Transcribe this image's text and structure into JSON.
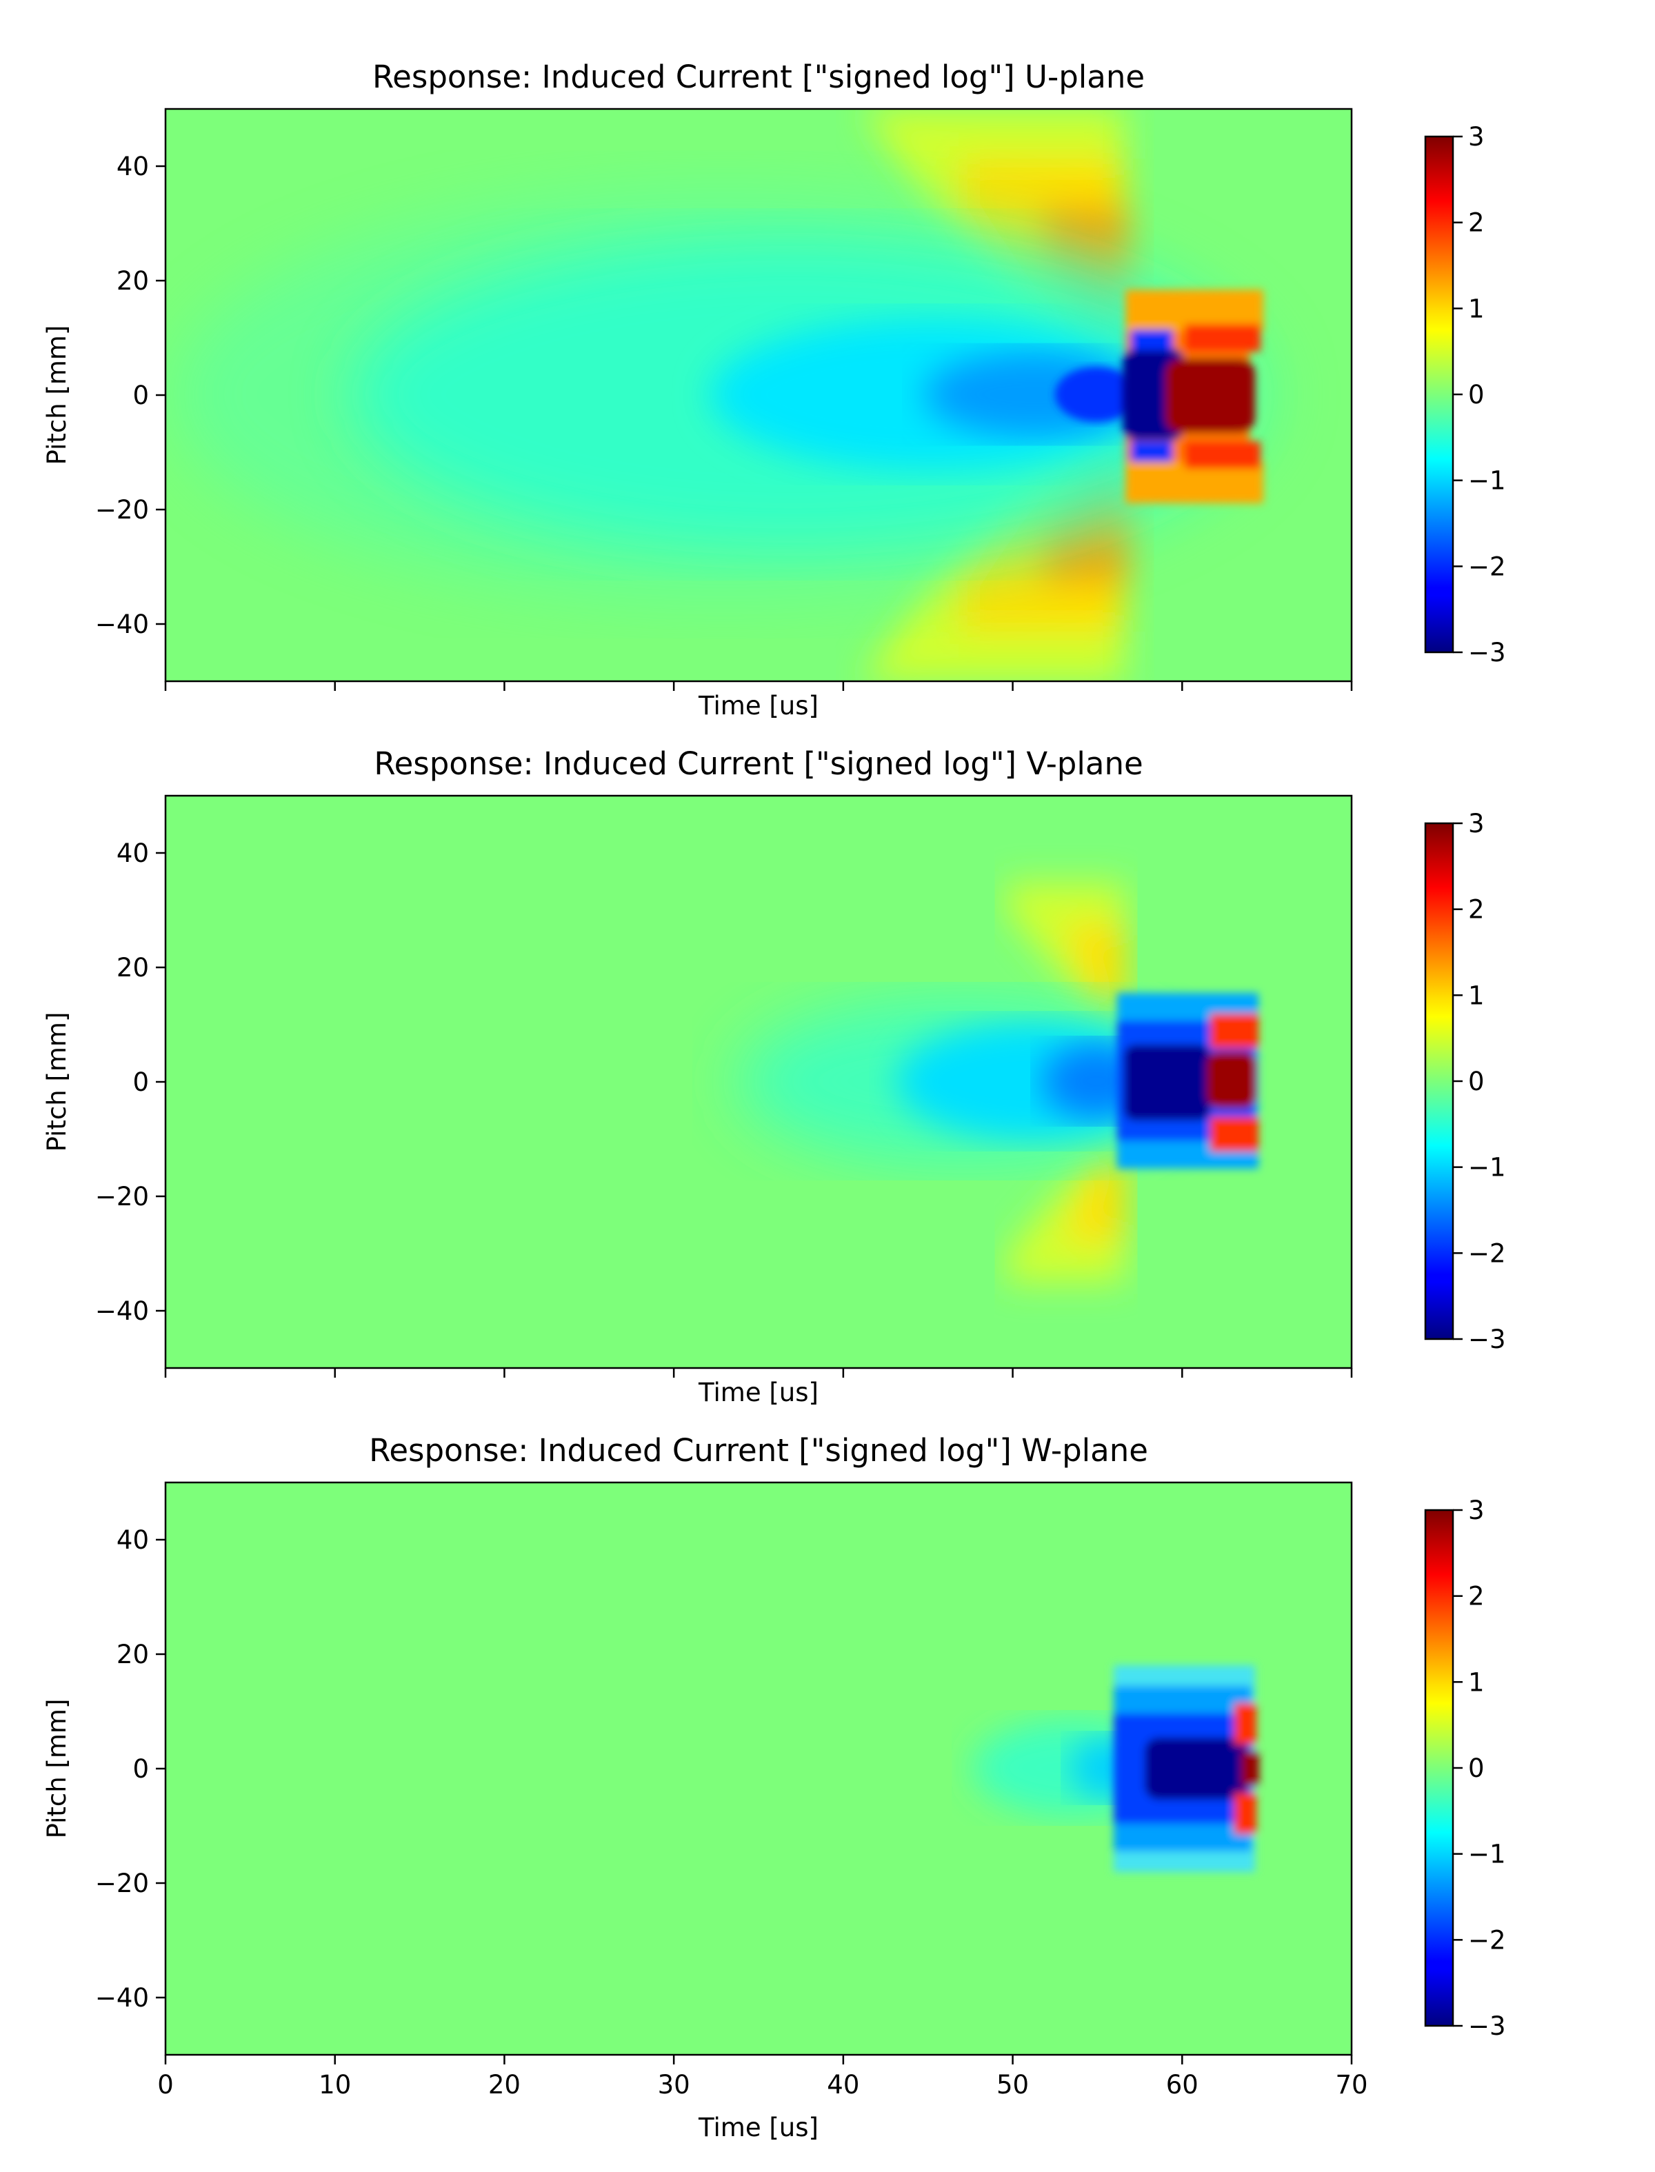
{
  "chart_data": [
    {
      "type": "heatmap",
      "title": "Response: Induced Current [\"signed log\"] U-plane",
      "xlabel": "Time [us]",
      "ylabel": "Pitch [mm]",
      "xlim": [
        0,
        70
      ],
      "ylim": [
        -50,
        50
      ],
      "xticks": [
        0,
        10,
        20,
        30,
        40,
        50,
        60,
        70
      ],
      "xtick_labels_shown": false,
      "yticks": [
        -40,
        -20,
        0,
        20,
        40
      ],
      "ytick_labels": [
        "−40",
        "−20",
        "0",
        "20",
        "40"
      ],
      "colormap": "jet",
      "clim": [
        -3,
        3
      ],
      "colorbar_ticks": [
        -3,
        -2,
        -1,
        0,
        1,
        2,
        3
      ],
      "colorbar_tick_labels": [
        "−3",
        "−2",
        "−1",
        "0",
        "1",
        "2",
        "3"
      ],
      "regions": [
        {
          "description": "broad negative lobe",
          "t_range": [
            5,
            56
          ],
          "pitch_range": [
            -30,
            30
          ],
          "value": -0.7
        },
        {
          "description": "positive side wings",
          "t_range": [
            42,
            57
          ],
          "pitch_range": [
            8,
            50
          ],
          "value": 1.2
        },
        {
          "description": "strong negative core",
          "t_range": [
            56,
            59.5
          ],
          "pitch_range": [
            -5,
            5
          ],
          "value": -3
        },
        {
          "description": "strong positive core",
          "t_range": [
            59.5,
            64
          ],
          "pitch_range": [
            -6,
            6
          ],
          "value": 3
        }
      ]
    },
    {
      "type": "heatmap",
      "title": "Response: Induced Current [\"signed log\"] V-plane",
      "xlabel": "Time [us]",
      "ylabel": "Pitch [mm]",
      "xlim": [
        0,
        70
      ],
      "ylim": [
        -50,
        50
      ],
      "xticks": [
        0,
        10,
        20,
        30,
        40,
        50,
        60,
        70
      ],
      "xtick_labels_shown": false,
      "yticks": [
        -40,
        -20,
        0,
        20,
        40
      ],
      "ytick_labels": [
        "−40",
        "−20",
        "0",
        "20",
        "40"
      ],
      "colormap": "jet",
      "clim": [
        -3,
        3
      ],
      "colorbar_ticks": [
        -3,
        -2,
        -1,
        0,
        1,
        2,
        3
      ],
      "colorbar_tick_labels": [
        "−3",
        "−2",
        "−1",
        "0",
        "1",
        "2",
        "3"
      ],
      "regions": [
        {
          "description": "negative lobe",
          "t_range": [
            34,
            56
          ],
          "pitch_range": [
            -14,
            14
          ],
          "value": -0.8
        },
        {
          "description": "weak positive wings",
          "t_range": [
            50,
            57
          ],
          "pitch_range": [
            12,
            38
          ],
          "value": 0.6
        },
        {
          "description": "strong negative core",
          "t_range": [
            56,
            61.5
          ],
          "pitch_range": [
            -10,
            10
          ],
          "value": -2.8
        },
        {
          "description": "strong positive core",
          "t_range": [
            61.5,
            64
          ],
          "pitch_range": [
            -5,
            5
          ],
          "value": 3
        }
      ]
    },
    {
      "type": "heatmap",
      "title": "Response: Induced Current [\"signed log\"] W-plane",
      "xlabel": "Time [us]",
      "ylabel": "Pitch [mm]",
      "xlim": [
        0,
        70
      ],
      "ylim": [
        -50,
        50
      ],
      "xticks": [
        0,
        10,
        20,
        30,
        40,
        50,
        60,
        70
      ],
      "xtick_labels": [
        "0",
        "10",
        "20",
        "30",
        "40",
        "50",
        "60",
        "70"
      ],
      "yticks": [
        -40,
        -20,
        0,
        20,
        40
      ],
      "ytick_labels": [
        "−40",
        "−20",
        "0",
        "20",
        "40"
      ],
      "colormap": "jet",
      "clim": [
        -3,
        3
      ],
      "colorbar_ticks": [
        -3,
        -2,
        -1,
        0,
        1,
        2,
        3
      ],
      "colorbar_tick_labels": [
        "−3",
        "−2",
        "−1",
        "0",
        "1",
        "2",
        "3"
      ],
      "regions": [
        {
          "description": "weak negative lobe",
          "t_range": [
            48,
            56
          ],
          "pitch_range": [
            -8,
            8
          ],
          "value": -0.6
        },
        {
          "description": "strong negative core",
          "t_range": [
            56,
            63
          ],
          "pitch_range": [
            -18,
            18
          ],
          "value": -2.8
        },
        {
          "description": "positive edge",
          "t_range": [
            62.5,
            64.5
          ],
          "pitch_range": [
            -15,
            15
          ],
          "value": 2.8
        }
      ]
    }
  ]
}
